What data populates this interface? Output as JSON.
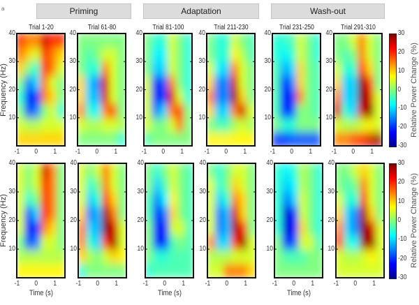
{
  "figure_label": "a",
  "groups": [
    {
      "label": "Priming"
    },
    {
      "label": "Adaptation"
    },
    {
      "label": "Wash-out"
    }
  ],
  "chart_data": {
    "type": "heatmap",
    "xlabel": "Time (s)",
    "ylabel": "Frequency (Hz)",
    "xlim": [
      -1,
      1.5
    ],
    "ylim": [
      0,
      40
    ],
    "xticks": [
      -1,
      0,
      1
    ],
    "yticks": [
      10,
      20,
      30,
      40
    ],
    "colormap": "jet",
    "colorbar": {
      "label": "Relative Power Change (%)",
      "range": [
        -30,
        30
      ],
      "ticks": [
        30,
        20,
        10,
        0,
        -10,
        -20,
        -30
      ]
    },
    "time_bins": [
      -0.8,
      -0.4,
      0,
      0.4,
      0.8,
      1.2
    ],
    "freq_bins": [
      2.5,
      7.5,
      12.5,
      17.5,
      22.5,
      27.5,
      32.5,
      37.5
    ],
    "rows": [
      {
        "panels": [
          {
            "title": "Trial 1-20",
            "values": [
              [
                10,
                10,
                10,
                10,
                10,
                10
              ],
              [
                5,
                3,
                3,
                5,
                5,
                5
              ],
              [
                0,
                -18,
                -15,
                0,
                5,
                -5
              ],
              [
                -5,
                -20,
                -20,
                15,
                10,
                0
              ],
              [
                0,
                -15,
                -10,
                15,
                5,
                0
              ],
              [
                10,
                0,
                -5,
                20,
                15,
                5
              ],
              [
                15,
                10,
                5,
                20,
                15,
                10
              ],
              [
                20,
                15,
                15,
                25,
                20,
                20
              ]
            ]
          },
          {
            "title": "Trial 61-80",
            "values": [
              [
                0,
                0,
                0,
                0,
                0,
                -5
              ],
              [
                5,
                3,
                3,
                5,
                5,
                3
              ],
              [
                15,
                -5,
                -8,
                15,
                18,
                0
              ],
              [
                10,
                -10,
                -12,
                25,
                5,
                0
              ],
              [
                10,
                -10,
                -15,
                25,
                5,
                0
              ],
              [
                0,
                -5,
                -5,
                15,
                5,
                0
              ],
              [
                0,
                -3,
                0,
                5,
                5,
                0
              ],
              [
                0,
                0,
                0,
                0,
                0,
                0
              ]
            ]
          },
          {
            "title": "Trial 81-100",
            "values": [
              [
                -3,
                0,
                0,
                0,
                0,
                0
              ],
              [
                5,
                0,
                0,
                5,
                15,
                0
              ],
              [
                5,
                -15,
                -10,
                15,
                20,
                0
              ],
              [
                5,
                -20,
                -20,
                25,
                5,
                -5
              ],
              [
                5,
                -20,
                -18,
                15,
                0,
                -5
              ],
              [
                0,
                -10,
                -10,
                5,
                0,
                -5
              ],
              [
                0,
                -8,
                -8,
                5,
                0,
                -5
              ],
              [
                0,
                -5,
                -5,
                5,
                0,
                -5
              ]
            ]
          },
          {
            "title": "Trial 211-230",
            "values": [
              [
                8,
                8,
                8,
                8,
                8,
                8
              ],
              [
                0,
                -3,
                -3,
                2,
                5,
                2
              ],
              [
                10,
                -10,
                -10,
                15,
                25,
                5
              ],
              [
                15,
                -15,
                -15,
                28,
                10,
                0
              ],
              [
                10,
                -15,
                -15,
                25,
                5,
                0
              ],
              [
                5,
                -8,
                -10,
                15,
                5,
                0
              ],
              [
                0,
                -5,
                -5,
                8,
                3,
                -3
              ],
              [
                0,
                -5,
                -5,
                5,
                0,
                -3
              ]
            ]
          },
          {
            "title": "Trial 231-250",
            "values": [
              [
                -20,
                -20,
                -18,
                -18,
                -18,
                -18
              ],
              [
                0,
                -5,
                -5,
                0,
                0,
                0
              ],
              [
                -3,
                -20,
                -18,
                0,
                0,
                -3
              ],
              [
                -3,
                -22,
                -20,
                15,
                0,
                -3
              ],
              [
                -3,
                -20,
                -15,
                10,
                0,
                -3
              ],
              [
                -3,
                -12,
                -10,
                10,
                0,
                -3
              ],
              [
                -5,
                -8,
                -5,
                5,
                0,
                -5
              ],
              [
                -5,
                -5,
                -3,
                5,
                0,
                -5
              ]
            ]
          },
          {
            "title": "Trial 291-310",
            "values": [
              [
                15,
                15,
                18,
                20,
                25,
                28
              ],
              [
                5,
                3,
                3,
                5,
                8,
                5
              ],
              [
                25,
                -5,
                -10,
                25,
                30,
                5
              ],
              [
                15,
                -10,
                -10,
                30,
                25,
                5
              ],
              [
                10,
                -10,
                -10,
                30,
                20,
                0
              ],
              [
                5,
                -5,
                -5,
                20,
                10,
                0
              ],
              [
                0,
                -3,
                0,
                15,
                5,
                0
              ],
              [
                0,
                0,
                5,
                15,
                5,
                0
              ]
            ]
          }
        ]
      },
      {
        "panels": [
          {
            "title": "",
            "values": [
              [
                8,
                8,
                8,
                8,
                8,
                8
              ],
              [
                3,
                3,
                3,
                3,
                3,
                3
              ],
              [
                0,
                -18,
                -15,
                5,
                5,
                0
              ],
              [
                5,
                -22,
                -20,
                15,
                10,
                0
              ],
              [
                5,
                -18,
                -10,
                20,
                15,
                0
              ],
              [
                5,
                -5,
                0,
                20,
                15,
                0
              ],
              [
                5,
                0,
                5,
                20,
                15,
                0
              ],
              [
                5,
                0,
                5,
                25,
                15,
                0
              ]
            ]
          },
          {
            "title": "",
            "values": [
              [
                -5,
                0,
                0,
                0,
                0,
                0
              ],
              [
                10,
                3,
                0,
                5,
                10,
                8
              ],
              [
                15,
                -5,
                -10,
                20,
                28,
                5
              ],
              [
                15,
                -10,
                -12,
                30,
                25,
                5
              ],
              [
                10,
                -15,
                -12,
                28,
                15,
                0
              ],
              [
                5,
                -10,
                -5,
                20,
                10,
                0
              ],
              [
                5,
                -5,
                0,
                15,
                5,
                0
              ],
              [
                5,
                0,
                5,
                15,
                5,
                0
              ]
            ]
          },
          {
            "title": "",
            "values": [
              [
                -5,
                -3,
                -3,
                -3,
                -3,
                -3
              ],
              [
                0,
                -5,
                -5,
                -3,
                -3,
                -3
              ],
              [
                0,
                -20,
                -20,
                -3,
                0,
                -3
              ],
              [
                0,
                -22,
                -20,
                5,
                5,
                -3
              ],
              [
                -3,
                -22,
                -15,
                10,
                0,
                -3
              ],
              [
                -3,
                -15,
                -8,
                8,
                0,
                -3
              ],
              [
                0,
                -10,
                -3,
                5,
                0,
                -3
              ],
              [
                0,
                -5,
                0,
                5,
                0,
                -3
              ]
            ]
          },
          {
            "title": "",
            "values": [
              [
                5,
                5,
                15,
                15,
                15,
                10
              ],
              [
                3,
                3,
                3,
                5,
                5,
                5
              ],
              [
                15,
                -10,
                -10,
                20,
                28,
                5
              ],
              [
                5,
                -15,
                -12,
                28,
                20,
                0
              ],
              [
                5,
                -15,
                -12,
                25,
                10,
                0
              ],
              [
                5,
                -10,
                -5,
                15,
                10,
                0
              ],
              [
                5,
                -5,
                0,
                10,
                5,
                0
              ],
              [
                0,
                -5,
                0,
                5,
                5,
                0
              ]
            ]
          },
          {
            "title": "",
            "values": [
              [
                0,
                0,
                0,
                0,
                0,
                0
              ],
              [
                0,
                -3,
                -3,
                -3,
                0,
                0
              ],
              [
                0,
                -20,
                -18,
                5,
                5,
                -3
              ],
              [
                -5,
                -25,
                -22,
                10,
                0,
                -5
              ],
              [
                -5,
                -25,
                -20,
                5,
                0,
                -5
              ],
              [
                -5,
                -15,
                -10,
                5,
                0,
                -5
              ],
              [
                -5,
                -10,
                -8,
                3,
                0,
                -5
              ],
              [
                -5,
                -8,
                -5,
                3,
                0,
                -5
              ]
            ]
          },
          {
            "title": "",
            "values": [
              [
                5,
                5,
                5,
                5,
                5,
                5
              ],
              [
                5,
                3,
                3,
                5,
                8,
                5
              ],
              [
                20,
                -5,
                -8,
                28,
                28,
                5
              ],
              [
                15,
                -10,
                -15,
                30,
                25,
                5
              ],
              [
                10,
                -10,
                -15,
                28,
                10,
                0
              ],
              [
                5,
                -5,
                -5,
                20,
                5,
                0
              ],
              [
                0,
                -3,
                0,
                15,
                5,
                0
              ],
              [
                0,
                0,
                5,
                10,
                5,
                0
              ]
            ]
          }
        ]
      }
    ]
  }
}
